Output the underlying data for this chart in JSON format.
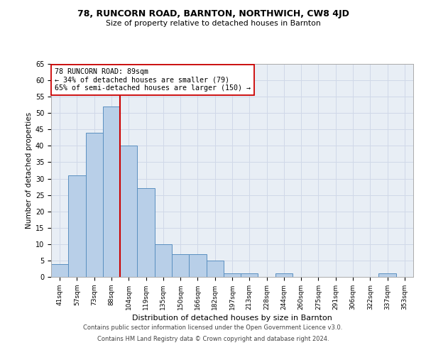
{
  "title1": "78, RUNCORN ROAD, BARNTON, NORTHWICH, CW8 4JD",
  "title2": "Size of property relative to detached houses in Barnton",
  "xlabel": "Distribution of detached houses by size in Barnton",
  "ylabel": "Number of detached properties",
  "categories": [
    "41sqm",
    "57sqm",
    "73sqm",
    "88sqm",
    "104sqm",
    "119sqm",
    "135sqm",
    "150sqm",
    "166sqm",
    "182sqm",
    "197sqm",
    "213sqm",
    "228sqm",
    "244sqm",
    "260sqm",
    "275sqm",
    "291sqm",
    "306sqm",
    "322sqm",
    "337sqm",
    "353sqm"
  ],
  "values": [
    4,
    31,
    44,
    52,
    40,
    27,
    10,
    7,
    7,
    5,
    1,
    1,
    0,
    1,
    0,
    0,
    0,
    0,
    0,
    1,
    0
  ],
  "bar_color": "#b8cfe8",
  "bar_edge_color": "#5a8fc0",
  "grid_color": "#d0d8e8",
  "background_color": "#e8eef5",
  "vline_x": 3.5,
  "vline_color": "#cc0000",
  "annotation_text": "78 RUNCORN ROAD: 89sqm\n← 34% of detached houses are smaller (79)\n65% of semi-detached houses are larger (150) →",
  "annotation_box_color": "#ffffff",
  "annotation_box_edge": "#cc0000",
  "footer1": "Contains HM Land Registry data © Crown copyright and database right 2024.",
  "footer2": "Contains public sector information licensed under the Open Government Licence v3.0.",
  "ylim": [
    0,
    65
  ],
  "yticks": [
    0,
    5,
    10,
    15,
    20,
    25,
    30,
    35,
    40,
    45,
    50,
    55,
    60,
    65
  ]
}
